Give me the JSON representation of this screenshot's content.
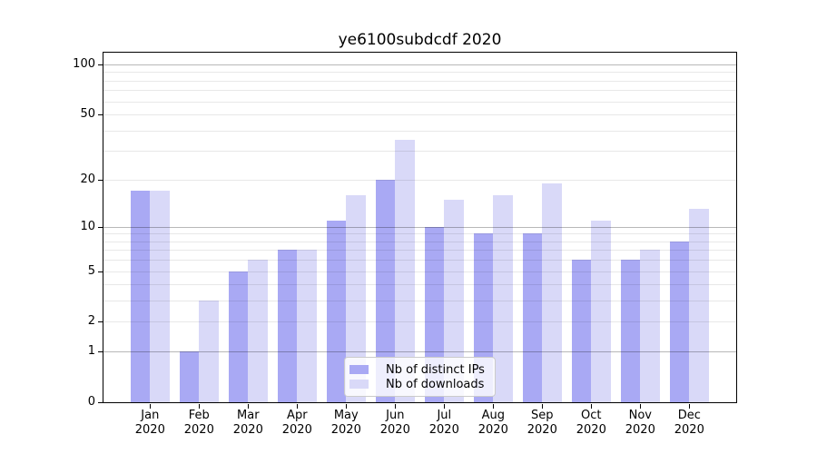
{
  "figure": {
    "title": "ye6100subdcdf 2020",
    "background_color": "#ffffff"
  },
  "chart_data": {
    "type": "bar",
    "title": "ye6100subdcdf 2020",
    "categories": [
      "Jan",
      "Feb",
      "Mar",
      "Apr",
      "May",
      "Jun",
      "Jul",
      "Aug",
      "Sep",
      "Oct",
      "Nov",
      "Dec"
    ],
    "x_tick_second_line": "2020",
    "series": [
      {
        "name": "Nb of distinct IPs",
        "color": "#a9a9f4",
        "values": [
          17,
          1,
          5,
          7,
          11,
          20,
          10,
          9,
          9,
          6,
          6,
          8
        ]
      },
      {
        "name": "Nb of downloads",
        "color": "#d9d9f8",
        "values": [
          17,
          3,
          6,
          7,
          16,
          35,
          15,
          16,
          19,
          11,
          7,
          13
        ]
      }
    ],
    "xlabel": "",
    "ylabel": "",
    "yscale": "log10(1+y)",
    "ylim": [
      0,
      117
    ],
    "y_tick_values": [
      100,
      50,
      20,
      10,
      5,
      2,
      1,
      0
    ],
    "grid": {
      "enabled": true,
      "major_values": [
        1,
        10,
        100
      ],
      "minor_values": [
        2,
        3,
        4,
        5,
        6,
        7,
        8,
        9,
        20,
        30,
        40,
        50,
        60,
        70,
        80,
        90
      ],
      "major_color": "rgba(0,0,0,0.28)",
      "minor_color": "rgba(0,0,0,0.09)",
      "drawn_above_bars": true
    },
    "legend": {
      "entries": [
        "Nb of distinct IPs",
        "Nb of downloads"
      ],
      "position": "lower center"
    },
    "axes_box_color": "#000000",
    "text_color": "#000000"
  }
}
